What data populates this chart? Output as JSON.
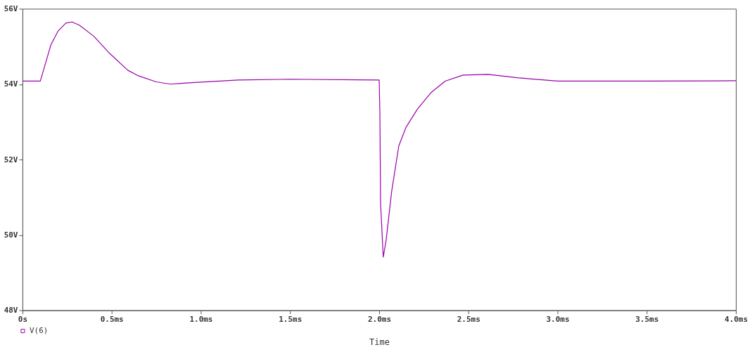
{
  "chart_data": {
    "type": "line",
    "xlabel": "Time",
    "legend": "bottom left",
    "marker": "none",
    "line_style": "solid",
    "grid": false,
    "xlim": [
      0,
      4.0
    ],
    "xticks": [
      {
        "value": 0,
        "label": "0s"
      },
      {
        "value": 0.5,
        "label": "0.5ms"
      },
      {
        "value": 1.0,
        "label": "1.0ms"
      },
      {
        "value": 1.5,
        "label": "1.5ms"
      },
      {
        "value": 2.0,
        "label": "2.0ms"
      },
      {
        "value": 2.5,
        "label": "2.5ms"
      },
      {
        "value": 3.0,
        "label": "3.0ms"
      },
      {
        "value": 3.5,
        "label": "3.5ms"
      },
      {
        "value": 4.0,
        "label": "4.0ms"
      }
    ],
    "ylim": [
      48,
      56
    ],
    "yticks": [
      {
        "value": 48,
        "label": "48V"
      },
      {
        "value": 50,
        "label": "50V"
      },
      {
        "value": 52,
        "label": "52V"
      },
      {
        "value": 54,
        "label": "54V"
      },
      {
        "value": 56,
        "label": "56V"
      }
    ],
    "series": [
      {
        "name": "V(6)",
        "color": "#9900aa",
        "x": [
          0,
          0.1,
          0.16,
          0.2,
          0.243,
          0.278,
          0.32,
          0.4,
          0.49,
          0.59,
          0.65,
          0.75,
          0.83,
          0.95,
          1.21,
          1.5,
          2.0,
          2.004,
          2.008,
          2.023,
          2.039,
          2.07,
          2.11,
          2.15,
          2.215,
          2.29,
          2.37,
          2.47,
          2.61,
          2.775,
          3.0,
          3.5,
          4.0
        ],
        "values": [
          54.08,
          54.08,
          55.05,
          55.41,
          55.62,
          55.65,
          55.56,
          55.27,
          54.81,
          54.37,
          54.22,
          54.06,
          54.0,
          54.04,
          54.11,
          54.13,
          54.11,
          53.27,
          50.84,
          49.41,
          49.86,
          51.15,
          52.36,
          52.85,
          53.34,
          53.77,
          54.08,
          54.24,
          54.26,
          54.17,
          54.08,
          54.08,
          54.09
        ]
      }
    ]
  }
}
